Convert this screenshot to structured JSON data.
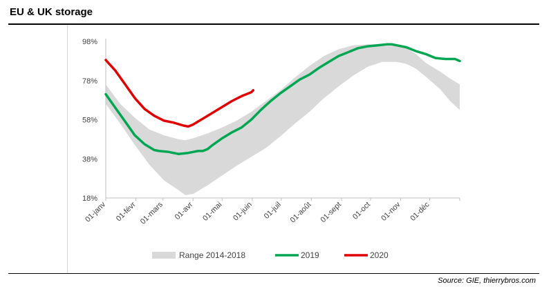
{
  "header": {
    "title": "EU & UK storage"
  },
  "footer": {
    "source": "Source: GIE, thierrybros.com"
  },
  "chart_data": {
    "type": "line",
    "title": "EU & UK storage",
    "xlabel": "",
    "ylabel": "",
    "x_unit": "day_of_year",
    "xlim": [
      0,
      365
    ],
    "ylim": [
      18,
      98
    ],
    "y_ticks": [
      18,
      38,
      58,
      78,
      98
    ],
    "y_tick_labels": [
      "18%",
      "38%",
      "58%",
      "78%",
      "98%"
    ],
    "x_ticks": [
      0,
      31,
      59,
      90,
      120,
      151,
      181,
      212,
      243,
      273,
      304,
      334
    ],
    "x_tick_labels": [
      "01-janv",
      "01-févr",
      "01-mars",
      "01-avr",
      "01-mai",
      "01-juin",
      "01-juil",
      "01-août",
      "01-sept",
      "01-oct",
      "01-nov",
      "01-déc"
    ],
    "grid": false,
    "legend": "bottom",
    "range": {
      "name": "Range 2014-2018",
      "color": "#d9d9d9",
      "x": [
        0,
        15,
        30,
        45,
        60,
        75,
        82,
        90,
        105,
        120,
        135,
        150,
        165,
        180,
        195,
        210,
        225,
        240,
        255,
        270,
        285,
        300,
        310,
        320,
        330,
        345,
        355,
        365
      ],
      "low": [
        66,
        56,
        45,
        35,
        27,
        22,
        19.5,
        20,
        24.5,
        29.5,
        34.5,
        39,
        43.5,
        49.5,
        56,
        62,
        69,
        75,
        80.5,
        85,
        87.5,
        87.5,
        86.5,
        84,
        80,
        73.5,
        67.5,
        63
      ],
      "high": [
        76,
        66,
        59,
        53,
        50,
        48,
        47.5,
        48.5,
        51,
        54,
        57.5,
        62,
        67.5,
        73,
        79.5,
        85.5,
        90.5,
        94,
        96,
        96.5,
        96.5,
        96,
        94.5,
        91.5,
        87,
        82.5,
        79,
        76
      ]
    },
    "series": [
      {
        "name": "2019",
        "color": "#00a651",
        "x": [
          0,
          10,
          20,
          30,
          40,
          50,
          55,
          65,
          75,
          85,
          90,
          95,
          100,
          105,
          110,
          120,
          130,
          140,
          150,
          160,
          170,
          180,
          190,
          200,
          210,
          220,
          230,
          240,
          250,
          260,
          270,
          280,
          290,
          295,
          300,
          310,
          320,
          330,
          340,
          350,
          360,
          365
        ],
        "y": [
          71,
          64,
          57,
          50,
          45.5,
          42.5,
          42,
          41.5,
          40.5,
          41,
          41.5,
          42,
          42,
          43,
          45,
          48.5,
          51.5,
          54,
          58,
          63,
          67.5,
          71.5,
          75,
          78.5,
          81,
          84.5,
          87.5,
          90.5,
          92.5,
          94.5,
          95.5,
          96,
          96.5,
          96.5,
          96,
          95,
          93,
          91.5,
          89.5,
          89,
          89,
          88
        ]
      },
      {
        "name": "2020",
        "color": "#e00000",
        "x": [
          0,
          10,
          20,
          30,
          40,
          50,
          60,
          70,
          80,
          85,
          90,
          95,
          100,
          110,
          120,
          130,
          140,
          150,
          152
        ],
        "y": [
          88.5,
          83,
          76,
          69,
          63.5,
          60,
          57.5,
          56.5,
          55,
          54.5,
          55.5,
          57,
          58.5,
          61.5,
          64.5,
          67.5,
          70,
          72,
          73
        ]
      }
    ]
  }
}
